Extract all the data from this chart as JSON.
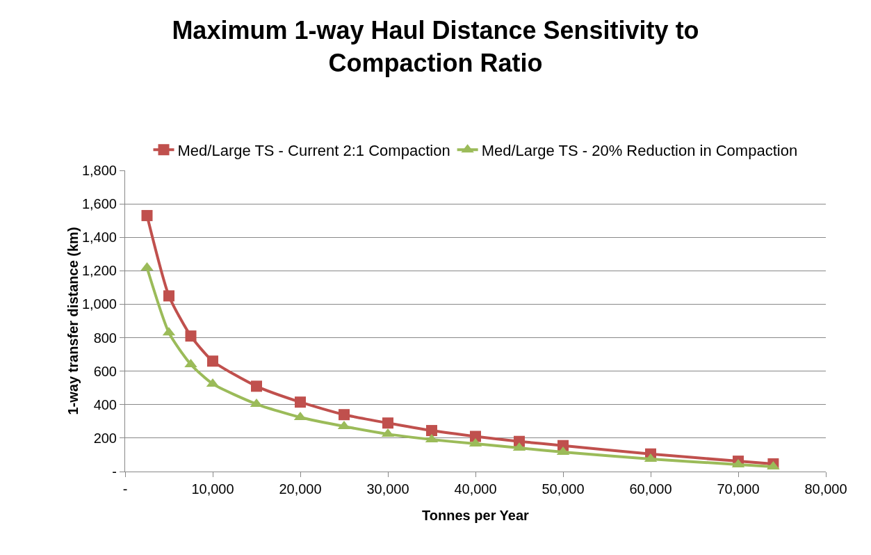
{
  "chart_data": {
    "type": "line",
    "title": "Maximum 1-way Haul Distance Sensitivity to Compaction Ratio",
    "xlabel": "Tonnes per Year",
    "ylabel": "1-way transfer distance (km)",
    "x": [
      2500,
      5000,
      7500,
      10000,
      15000,
      20000,
      25000,
      30000,
      35000,
      40000,
      45000,
      50000,
      60000,
      70000,
      74000
    ],
    "series": [
      {
        "name": "Med/Large TS - Current 2:1 Compaction",
        "color": "#c0504d",
        "marker": "square",
        "values": [
          1530,
          1050,
          810,
          660,
          510,
          415,
          340,
          290,
          245,
          210,
          180,
          155,
          105,
          62,
          46
        ]
      },
      {
        "name": "Med/Large TS - 20% Reduction in Compaction",
        "color": "#9bbb59",
        "marker": "triangle",
        "values": [
          1218,
          830,
          640,
          524,
          403,
          324,
          270,
          224,
          191,
          166,
          141,
          116,
          75,
          42,
          29
        ]
      }
    ],
    "xlim": [
      0,
      80000
    ],
    "xticks": [
      {
        "value": 0,
        "label": "-"
      },
      {
        "value": 10000,
        "label": "10,000"
      },
      {
        "value": 20000,
        "label": "20,000"
      },
      {
        "value": 30000,
        "label": "30,000"
      },
      {
        "value": 40000,
        "label": "40,000"
      },
      {
        "value": 50000,
        "label": "50,000"
      },
      {
        "value": 60000,
        "label": "60,000"
      },
      {
        "value": 70000,
        "label": "70,000"
      },
      {
        "value": 80000,
        "label": "80,000"
      }
    ],
    "ylim": [
      0,
      1800
    ],
    "yticks": [
      {
        "value": 0,
        "label": "-"
      },
      {
        "value": 200,
        "label": "200"
      },
      {
        "value": 400,
        "label": "400"
      },
      {
        "value": 600,
        "label": "600"
      },
      {
        "value": 800,
        "label": "800"
      },
      {
        "value": 1000,
        "label": "1,000"
      },
      {
        "value": 1200,
        "label": "1,200"
      },
      {
        "value": 1400,
        "label": "1,400"
      },
      {
        "value": 1600,
        "label": "1,600"
      },
      {
        "value": 1800,
        "label": "1,800"
      }
    ],
    "grid": "y",
    "legend": "top",
    "line_style": "solid"
  }
}
